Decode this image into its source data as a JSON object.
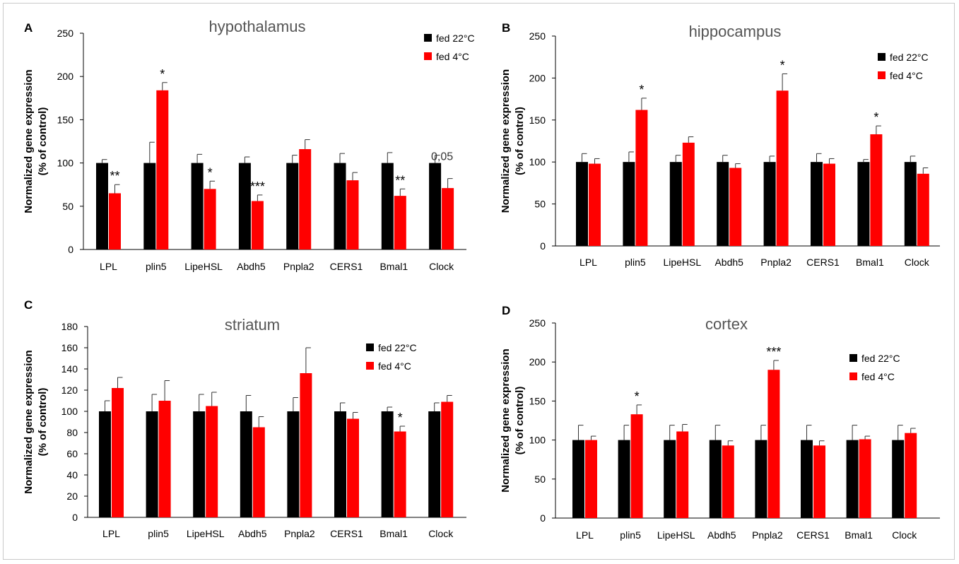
{
  "colors": {
    "series_a": "#000000",
    "series_b": "#ff0000",
    "axis": "#000000",
    "error": "#333333"
  },
  "chart_data": [
    {
      "panel": "A",
      "type": "bar",
      "title": "hypothalamus",
      "ylabel": "Normalized gene expression",
      "ylabel2": "(% of control)",
      "ylim": [
        0,
        250
      ],
      "yticks": [
        0,
        50,
        100,
        150,
        200,
        250
      ],
      "grid": false,
      "legend_position": "top-right",
      "categories": [
        "LPL",
        "plin5",
        "LipeHSL",
        "Abdh5",
        "Pnpla2",
        "CERS1",
        "Bmal1",
        "Clock"
      ],
      "series": [
        {
          "name": "fed 22°C",
          "values": [
            100,
            100,
            100,
            100,
            100,
            100,
            100,
            100
          ],
          "errors": [
            4,
            24,
            10,
            7,
            9,
            11,
            12,
            9
          ]
        },
        {
          "name": "fed 4°C",
          "values": [
            65,
            184,
            70,
            56,
            116,
            80,
            62,
            71
          ],
          "errors": [
            10,
            9,
            9,
            7,
            11,
            9,
            8,
            11
          ]
        }
      ],
      "annotations": [
        {
          "category": 0,
          "text": "**"
        },
        {
          "category": 1,
          "text": "*"
        },
        {
          "category": 2,
          "text": "*"
        },
        {
          "category": 3,
          "text": "***"
        },
        {
          "category": 6,
          "text": "**"
        },
        {
          "category": 7,
          "text": "0,05",
          "plain": true
        }
      ]
    },
    {
      "panel": "B",
      "type": "bar",
      "title": "hippocampus",
      "ylabel": "Normalized gene expression",
      "ylabel2": "(% of control)",
      "ylim": [
        0,
        250
      ],
      "yticks": [
        0,
        50,
        100,
        150,
        200,
        250
      ],
      "grid": false,
      "legend_position": "top-right",
      "categories": [
        "LPL",
        "plin5",
        "LipeHSL",
        "Abdh5",
        "Pnpla2",
        "CERS1",
        "Bmal1",
        "Clock"
      ],
      "series": [
        {
          "name": "fed 22°C",
          "values": [
            100,
            100,
            100,
            100,
            100,
            100,
            100,
            100
          ],
          "errors": [
            10,
            12,
            8,
            8,
            7,
            10,
            3,
            7
          ]
        },
        {
          "name": "fed 4°C",
          "values": [
            98,
            162,
            123,
            93,
            185,
            98,
            133,
            86
          ],
          "errors": [
            6,
            14,
            7,
            5,
            20,
            6,
            10,
            7
          ]
        }
      ],
      "annotations": [
        {
          "category": 1,
          "text": "*"
        },
        {
          "category": 4,
          "text": "*"
        },
        {
          "category": 6,
          "text": "*"
        }
      ]
    },
    {
      "panel": "C",
      "type": "bar",
      "title": "striatum",
      "ylabel": "Normalized gene expression",
      "ylabel2": "(% of control)",
      "ylim": [
        0,
        180
      ],
      "yticks": [
        0,
        20,
        40,
        60,
        80,
        100,
        120,
        140,
        160,
        180
      ],
      "grid": false,
      "legend_position": "top-right",
      "categories": [
        "LPL",
        "plin5",
        "LipeHSL",
        "Abdh5",
        "Pnpla2",
        "CERS1",
        "Bmal1",
        "Clock"
      ],
      "series": [
        {
          "name": "fed 22°C",
          "values": [
            100,
            100,
            100,
            100,
            100,
            100,
            100,
            100
          ],
          "errors": [
            10,
            16,
            16,
            15,
            13,
            8,
            4,
            8
          ]
        },
        {
          "name": "fed 4°C",
          "values": [
            122,
            110,
            105,
            85,
            136,
            93,
            81,
            109
          ],
          "errors": [
            10,
            19,
            13,
            10,
            24,
            6,
            5,
            6
          ]
        }
      ],
      "annotations": [
        {
          "category": 6,
          "text": "*"
        }
      ]
    },
    {
      "panel": "D",
      "type": "bar",
      "title": "cortex",
      "ylabel": "Normalized gene expression",
      "ylabel2": "(% of control)",
      "ylim": [
        0,
        250
      ],
      "yticks": [
        0,
        50,
        100,
        150,
        200,
        250
      ],
      "grid": false,
      "legend_position": "top-right",
      "categories": [
        "LPL",
        "plin5",
        "LipeHSL",
        "Abdh5",
        "Pnpla2",
        "CERS1",
        "Bmal1",
        "Clock"
      ],
      "series": [
        {
          "name": "fed 22°C",
          "values": [
            100,
            100,
            100,
            100,
            100,
            100,
            100,
            100
          ],
          "errors": [
            19,
            19,
            19,
            19,
            19,
            19,
            19,
            19
          ]
        },
        {
          "name": "fed 4°C",
          "values": [
            100,
            133,
            111,
            93,
            190,
            93,
            101,
            109
          ],
          "errors": [
            5,
            12,
            9,
            6,
            12,
            6,
            4,
            6
          ]
        }
      ],
      "annotations": [
        {
          "category": 1,
          "text": "*"
        },
        {
          "category": 4,
          "text": "***"
        }
      ]
    }
  ]
}
